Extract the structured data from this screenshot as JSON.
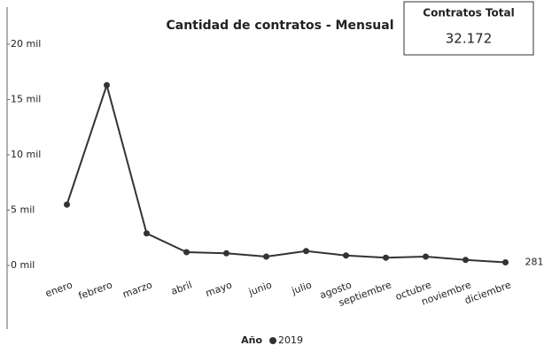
{
  "chart_data": {
    "type": "line",
    "title": "Cantidad de contratos - Mensual",
    "kpi": {
      "label": "Contratos Total",
      "value": "32.172"
    },
    "categories": [
      "enero",
      "febrero",
      "marzo",
      "abril",
      "mayo",
      "junio",
      "julio",
      "agosto",
      "septiembre",
      "octubre",
      "noviembre",
      "diciembre"
    ],
    "legend_title": "Año",
    "series": [
      {
        "name": "2019",
        "color": "#333333",
        "values": [
          5500,
          16300,
          2900,
          1200,
          1100,
          800,
          1300,
          900,
          700,
          800,
          500,
          281
        ]
      }
    ],
    "ylim": [
      0,
      20000
    ],
    "yticks": [
      {
        "value": 0,
        "label": "0 mil"
      },
      {
        "value": 5000,
        "label": "5 mil"
      },
      {
        "value": 10000,
        "label": "10 mil"
      },
      {
        "value": 15000,
        "label": "15 mil"
      },
      {
        "value": 20000,
        "label": "20 mil"
      }
    ],
    "grid": false
  }
}
